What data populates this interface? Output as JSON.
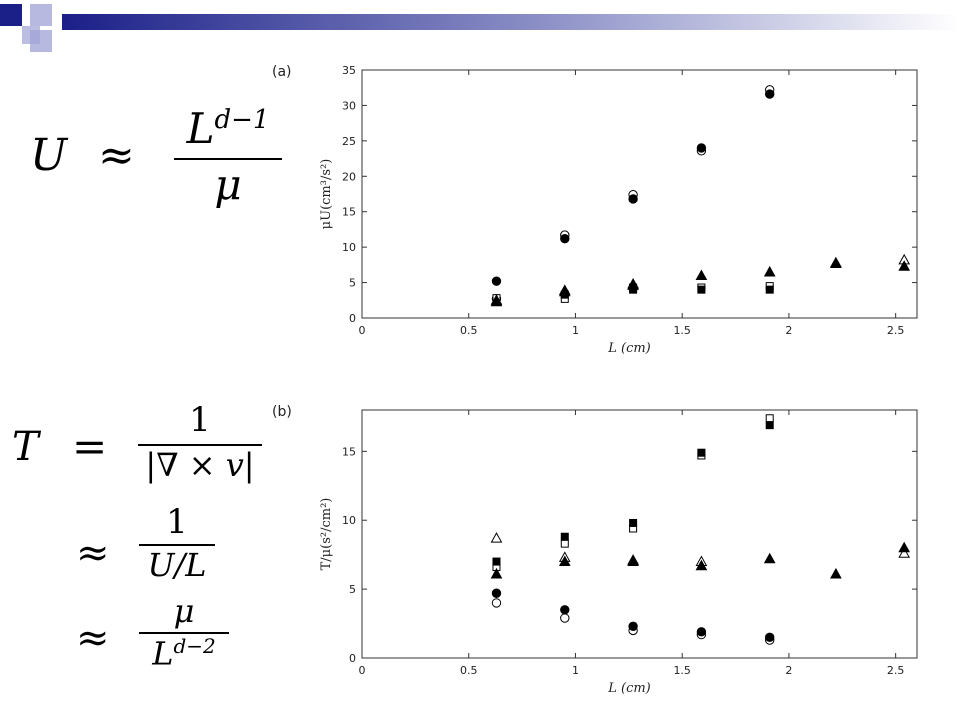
{
  "formulas": {
    "u": {
      "lhs": "U",
      "rel": "≈",
      "num": "L",
      "num_sup": "d−1",
      "den": "μ"
    },
    "t1": {
      "lhs": "T",
      "rel": "=",
      "num": "1",
      "den": "|∇ × v|"
    },
    "t2": {
      "rel": "≈",
      "num": "1",
      "den": "U/L"
    },
    "t3": {
      "rel": "≈",
      "num": "μ",
      "den": "L",
      "den_sup": "d−2"
    }
  },
  "chart_data": [
    {
      "type": "scatter",
      "panel_label": "(a)",
      "xlabel": "L (cm)",
      "ylabel": "μU(cm³/s²)",
      "xlim": [
        0,
        2.6
      ],
      "ylim": [
        0,
        35
      ],
      "xticks": [
        0,
        0.5,
        1,
        1.5,
        2,
        2.5
      ],
      "xtick_labels": [
        "0",
        "0.5",
        "1",
        "1.5",
        "2",
        "2.5"
      ],
      "yticks": [
        0,
        5,
        10,
        15,
        20,
        25,
        30,
        35
      ],
      "ytick_labels": [
        "0",
        "5",
        "10",
        "15",
        "20",
        "25",
        "30",
        "35"
      ],
      "series": [
        {
          "marker": "circle-open",
          "points": [
            [
              0.63,
              2.7
            ],
            [
              0.95,
              11.7
            ],
            [
              1.27,
              17.4
            ],
            [
              1.59,
              23.6
            ],
            [
              1.91,
              32.2
            ]
          ]
        },
        {
          "marker": "circle-filled",
          "points": [
            [
              0.63,
              5.2
            ],
            [
              0.95,
              11.2
            ],
            [
              1.27,
              16.8
            ],
            [
              1.59,
              24.0
            ],
            [
              1.91,
              31.6
            ]
          ]
        },
        {
          "marker": "square-open",
          "points": [
            [
              0.63,
              2.8
            ],
            [
              0.95,
              2.7
            ],
            [
              1.27,
              4.3
            ],
            [
              1.59,
              4.3
            ],
            [
              1.91,
              4.5
            ]
          ]
        },
        {
          "marker": "square-filled",
          "points": [
            [
              0.95,
              3.3
            ],
            [
              1.27,
              4.0
            ],
            [
              1.59,
              4.0
            ],
            [
              1.91,
              4.0
            ]
          ]
        },
        {
          "marker": "triangle-open",
          "points": [
            [
              0.63,
              2.5
            ],
            [
              0.95,
              3.9
            ],
            [
              1.27,
              4.8
            ],
            [
              2.22,
              7.8
            ],
            [
              2.54,
              8.2
            ]
          ]
        },
        {
          "marker": "triangle-filled",
          "points": [
            [
              0.63,
              2.3
            ],
            [
              0.95,
              3.7
            ],
            [
              1.27,
              4.6
            ],
            [
              1.59,
              6.0
            ],
            [
              1.91,
              6.5
            ],
            [
              2.22,
              7.7
            ],
            [
              2.54,
              7.3
            ]
          ]
        }
      ]
    },
    {
      "type": "scatter",
      "panel_label": "(b)",
      "xlabel": "L (cm)",
      "ylabel": "T/μ(s²/cm²)",
      "xlim": [
        0,
        2.6
      ],
      "ylim": [
        0,
        18
      ],
      "xticks": [
        0,
        0.5,
        1,
        1.5,
        2,
        2.5
      ],
      "xtick_labels": [
        "0",
        "0.5",
        "1",
        "1.5",
        "2",
        "2.5"
      ],
      "yticks": [
        0,
        5,
        10,
        15
      ],
      "ytick_labels": [
        "0",
        "5",
        "10",
        "15"
      ],
      "series": [
        {
          "marker": "circle-open",
          "points": [
            [
              0.63,
              4.0
            ],
            [
              0.95,
              2.9
            ],
            [
              1.27,
              2.0
            ],
            [
              1.59,
              1.7
            ],
            [
              1.91,
              1.3
            ]
          ]
        },
        {
          "marker": "circle-filled",
          "points": [
            [
              0.63,
              4.7
            ],
            [
              0.95,
              3.5
            ],
            [
              1.27,
              2.3
            ],
            [
              1.59,
              1.9
            ],
            [
              1.91,
              1.5
            ]
          ]
        },
        {
          "marker": "square-open",
          "points": [
            [
              0.63,
              6.6
            ],
            [
              0.95,
              8.3
            ],
            [
              1.27,
              9.4
            ],
            [
              1.59,
              14.7
            ],
            [
              1.91,
              17.4
            ]
          ]
        },
        {
          "marker": "square-filled",
          "points": [
            [
              0.63,
              7.0
            ],
            [
              0.95,
              8.8
            ],
            [
              1.27,
              9.8
            ],
            [
              1.59,
              14.9
            ],
            [
              1.91,
              16.9
            ]
          ]
        },
        {
          "marker": "triangle-open",
          "points": [
            [
              0.63,
              8.7
            ],
            [
              0.95,
              7.3
            ],
            [
              1.27,
              7.1
            ],
            [
              1.59,
              7.0
            ],
            [
              2.54,
              7.6
            ]
          ]
        },
        {
          "marker": "triangle-filled",
          "points": [
            [
              0.63,
              6.1
            ],
            [
              0.95,
              7.0
            ],
            [
              1.27,
              7.0
            ],
            [
              1.59,
              6.7
            ],
            [
              1.91,
              7.2
            ],
            [
              2.22,
              6.1
            ],
            [
              2.54,
              8.0
            ]
          ]
        }
      ]
    }
  ]
}
